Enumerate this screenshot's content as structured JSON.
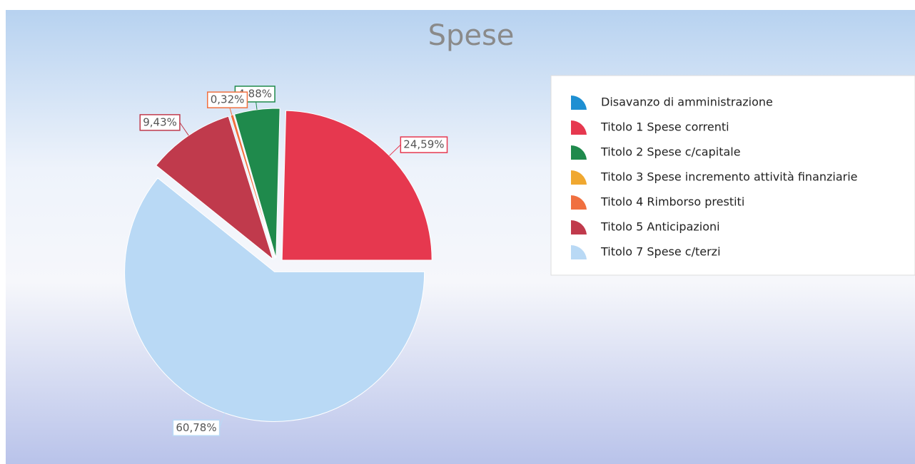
{
  "chart_data": {
    "type": "pie",
    "title": "Spese",
    "categories": [
      "Disavanzo di amministrazione",
      "Titolo 1 Spese correnti",
      "Titolo 2 Spese c/capitale",
      "Titolo 3 Spese incremento attività finanziarie",
      "Titolo 4 Rimborso prestiti",
      "Titolo 5 Anticipazioni",
      "Titolo 7 Spese c/terzi"
    ],
    "values": [
      0,
      24.59,
      4.88,
      0,
      0.32,
      9.43,
      60.78
    ],
    "value_labels": [
      null,
      "24,59%",
      "4,88%",
      null,
      "0,32%",
      "9,43%",
      "60,78%"
    ],
    "colors": [
      "#1e8fd2",
      "#e6384f",
      "#1f8a4c",
      "#f0a830",
      "#f07040",
      "#c03a4c",
      "#b9d9f5"
    ],
    "legend": "right"
  }
}
